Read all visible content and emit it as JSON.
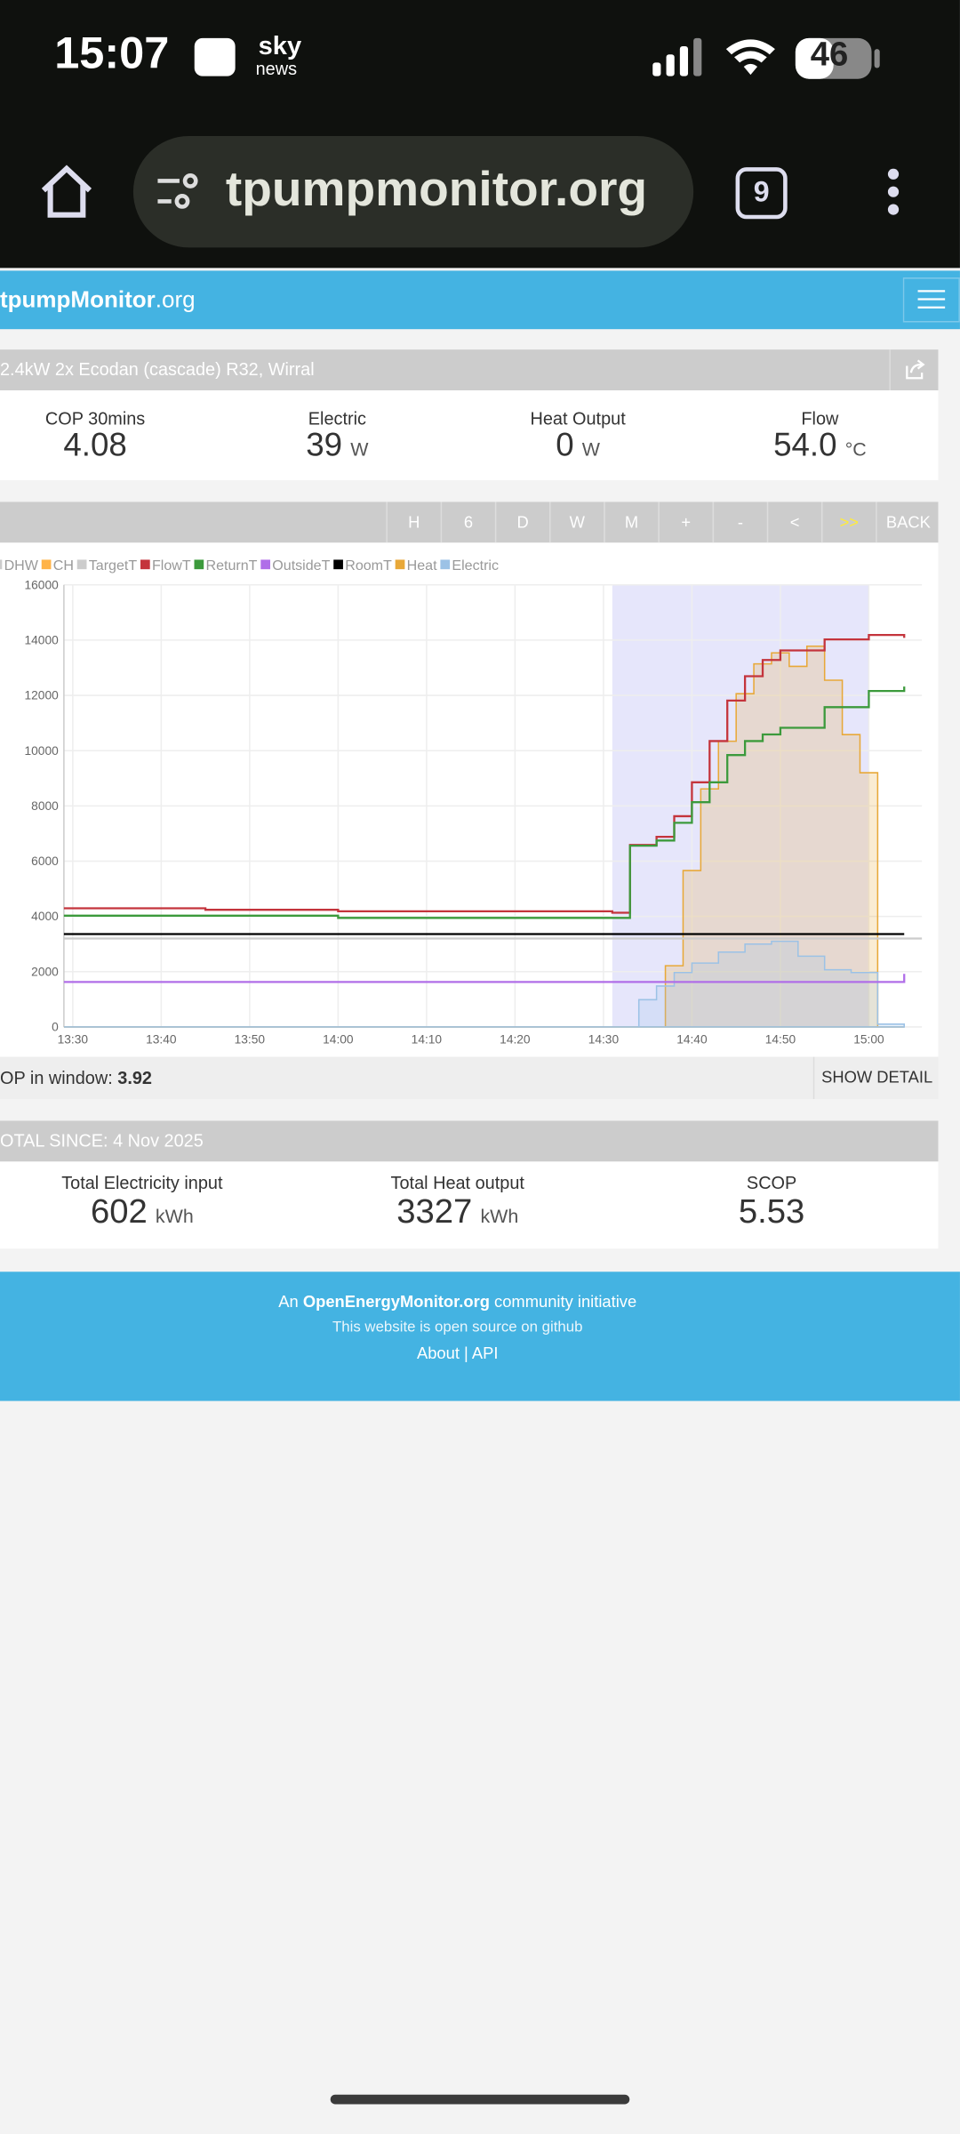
{
  "status_bar": {
    "time": "15:07",
    "app_top": "sky",
    "app_bottom": "news",
    "battery": "46"
  },
  "browser": {
    "url": "tpumpmonitor.org",
    "tab_count": "9"
  },
  "header": {
    "brand_bold": "tpumpMonitor",
    "brand_rest": ".org"
  },
  "system": {
    "title": "2.4kW 2x Ecodan (cascade) R32, Wirral"
  },
  "stats": [
    {
      "label": "COP 30mins",
      "value": "4.08"
    },
    {
      "label": "Electric",
      "value": "39",
      "unit": "W"
    },
    {
      "label": "Heat Output",
      "value": "0",
      "unit": "W"
    },
    {
      "label": "Flow",
      "value": "54.0",
      "unit": "°C"
    }
  ],
  "controls": [
    "H",
    "6",
    "D",
    "W",
    "M",
    "+",
    "-",
    "<",
    ">>",
    "BACK"
  ],
  "chart_data": {
    "type": "line",
    "xlim": [
      "13:29",
      "15:06"
    ],
    "xticks": [
      "13:30",
      "13:40",
      "13:50",
      "14:00",
      "14:10",
      "14:20",
      "14:30",
      "14:40",
      "14:50",
      "15:00"
    ],
    "ylim": [
      0,
      16000
    ],
    "yticks": [
      0,
      2000,
      4000,
      6000,
      8000,
      10000,
      12000,
      14000,
      16000
    ],
    "y2lim": [
      0,
      60
    ],
    "grid": true,
    "highlight": [
      "14:31",
      "15:00"
    ],
    "series": [
      {
        "name": "DHW",
        "color": "#cccccc",
        "x": [],
        "values": []
      },
      {
        "name": "CH",
        "color": "#ffb347",
        "x": [],
        "values": []
      },
      {
        "name": "TargetT",
        "color": "#cccccc",
        "axis": "y2",
        "x": [
          "13:29",
          "15:06"
        ],
        "values": [
          12.0,
          12.0
        ]
      },
      {
        "name": "FlowT",
        "color": "#c4343c",
        "axis": "y2",
        "x": [
          "13:29",
          "13:45",
          "14:00",
          "14:31",
          "14:33",
          "14:36",
          "14:38",
          "14:40",
          "14:42",
          "14:44",
          "14:46",
          "14:48",
          "14:50",
          "14:55",
          "15:00",
          "15:04"
        ],
        "values": [
          16.1,
          15.9,
          15.7,
          15.5,
          24.7,
          25.8,
          28.6,
          33.2,
          38.8,
          44.3,
          47.6,
          49.8,
          51.1,
          52.6,
          53.2,
          52.8
        ]
      },
      {
        "name": "ReturnT",
        "color": "#3c9a3c",
        "axis": "y2",
        "x": [
          "13:29",
          "14:00",
          "14:31",
          "14:33",
          "14:36",
          "14:38",
          "14:40",
          "14:42",
          "14:44",
          "14:46",
          "14:48",
          "14:50",
          "14:55",
          "15:00",
          "15:04"
        ],
        "values": [
          15.1,
          14.8,
          14.8,
          24.6,
          25.3,
          27.7,
          30.5,
          33.2,
          36.9,
          38.8,
          39.7,
          40.6,
          43.4,
          45.6,
          46.2
        ]
      },
      {
        "name": "OutsideT",
        "color": "#b06ee8",
        "axis": "y2",
        "x": [
          "13:29",
          "15:03",
          "15:04"
        ],
        "values": [
          6.1,
          6.1,
          7.2
        ]
      },
      {
        "name": "RoomT",
        "color": "#000000",
        "axis": "y2",
        "x": [
          "13:29",
          "15:04"
        ],
        "values": [
          12.6,
          12.6
        ]
      },
      {
        "name": "Heat",
        "color": "#e8a838",
        "fill": true,
        "x": [
          "13:29",
          "14:37",
          "14:39",
          "14:41",
          "14:43",
          "14:45",
          "14:47",
          "14:49",
          "14:51",
          "14:53",
          "14:55",
          "14:57",
          "14:59",
          "15:00",
          "15:01",
          "15:04"
        ],
        "values": [
          0,
          2215,
          5660,
          8615,
          10340,
          12060,
          13140,
          13540,
          13050,
          13780,
          12550,
          10580,
          9200,
          9200,
          0,
          0
        ]
      },
      {
        "name": "Electric",
        "color": "#9cc2e6",
        "fill": true,
        "x": [
          "13:29",
          "14:34",
          "14:36",
          "14:38",
          "14:40",
          "14:43",
          "14:46",
          "14:49",
          "14:52",
          "14:55",
          "14:58",
          "15:00",
          "15:01",
          "15:04"
        ],
        "values": [
          0,
          985,
          1480,
          1970,
          2310,
          2710,
          3000,
          3100,
          2560,
          2070,
          1970,
          1970,
          100,
          100
        ]
      }
    ]
  },
  "window": {
    "label": "OP in window: ",
    "value": "3.92",
    "button": "SHOW DETAIL"
  },
  "totals": {
    "title": "OTAL SINCE: 4 Nov 2025",
    "items": [
      {
        "label": "Total Electricity input",
        "value": "602",
        "unit": "kWh"
      },
      {
        "label": "Total Heat output",
        "value": "3327",
        "unit": "kWh"
      },
      {
        "label": "SCOP",
        "value": "5.53"
      }
    ]
  },
  "footer": {
    "pre": "An ",
    "link": "OpenEnergyMonitor.org",
    "post": " community initiative",
    "line2": "This website is open source on github",
    "links": "About | API"
  }
}
